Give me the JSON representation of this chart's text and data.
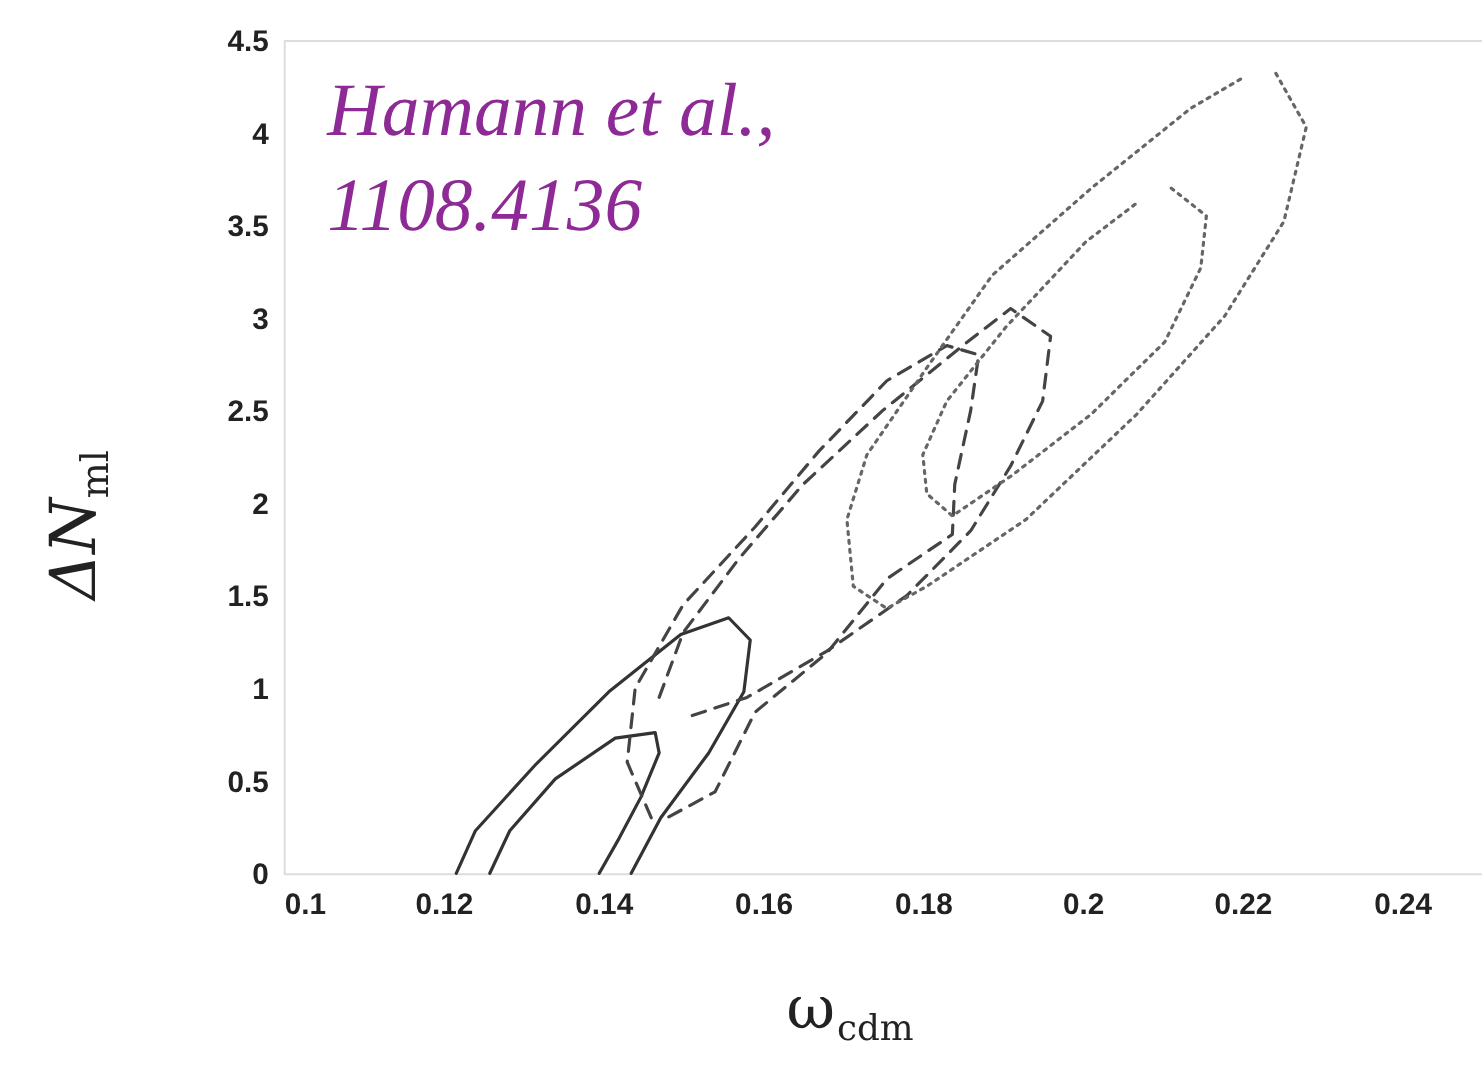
{
  "chart_data": {
    "type": "line",
    "xlabel": "ω$_{cdm}$",
    "ylabel": "ΔN$_{ml}$",
    "annotations": [
      "Hamann et al.,",
      "1108.4136"
    ],
    "xlim": [
      0.1,
      0.25
    ],
    "ylim": [
      0,
      4.5
    ],
    "xticks": [
      0.1,
      0.12,
      0.14,
      0.16,
      0.18,
      0.2,
      0.22,
      0.24
    ],
    "yticks": [
      0,
      0.5,
      1,
      1.5,
      2,
      2.5,
      3,
      3.5,
      4,
      4.5
    ],
    "grid": false,
    "marker": "none",
    "series": [
      {
        "color": "#333333",
        "line_style": "solid",
        "x": [
          0.1216,
          0.124,
          0.1316,
          0.1407,
          0.1497,
          0.1557,
          0.1584,
          0.1576,
          0.1532,
          0.1472,
          0.1435
        ],
        "values": [
          0,
          0.23,
          0.59,
          0.98,
          1.29,
          1.38,
          1.26,
          0.98,
          0.65,
          0.3,
          0
        ]
      },
      {
        "color": "#333333",
        "line_style": "solid",
        "x": [
          0.1258,
          0.1283,
          0.134,
          0.1415,
          0.1465,
          0.147,
          0.1447,
          0.142,
          0.1395
        ],
        "values": [
          0,
          0.23,
          0.51,
          0.73,
          0.76,
          0.65,
          0.41,
          0.19,
          0
        ]
      },
      {
        "color": "#444444",
        "line_style": "dashed",
        "x": [
          0.146,
          0.143,
          0.144,
          0.15,
          0.159,
          0.167,
          0.1755,
          0.183,
          0.187,
          0.186,
          0.184,
          0.1837,
          0.1755,
          0.168,
          0.159,
          0.154,
          0.148
        ],
        "values": [
          0.3,
          0.6,
          1.0,
          1.45,
          1.87,
          2.28,
          2.66,
          2.85,
          2.8,
          2.5,
          2.1,
          1.83,
          1.59,
          1.19,
          0.87,
          0.44,
          0.3
        ]
      },
      {
        "color": "#444444",
        "line_style": "dashed",
        "x": [
          0.147,
          0.15,
          0.157,
          0.165,
          0.175,
          0.185,
          0.191,
          0.196,
          0.195,
          0.191,
          0.186,
          0.178,
          0.168,
          0.158,
          0.151
        ],
        "values": [
          0.95,
          1.3,
          1.7,
          2.1,
          2.5,
          2.85,
          3.05,
          2.9,
          2.55,
          2.2,
          1.85,
          1.5,
          1.2,
          0.95,
          0.85
        ]
      },
      {
        "color": "#666666",
        "line_style": "dotted",
        "x": [
          0.2242,
          0.228,
          0.2252,
          0.2178,
          0.2068,
          0.1929,
          0.1805,
          0.1755,
          0.1713,
          0.1705,
          0.173,
          0.1805,
          0.1887,
          0.2011,
          0.2135,
          0.2202
        ],
        "values": [
          4.32,
          4.03,
          3.52,
          3.01,
          2.48,
          1.91,
          1.55,
          1.43,
          1.55,
          1.91,
          2.26,
          2.73,
          3.23,
          3.7,
          4.13,
          4.3
        ]
      },
      {
        "color": "#666666",
        "line_style": "dotted",
        "x": [
          0.2111,
          0.2155,
          0.2148,
          0.2103,
          0.2011,
          0.1912,
          0.1837,
          0.1805,
          0.18,
          0.183,
          0.1904,
          0.2004,
          0.2068
        ],
        "values": [
          3.7,
          3.55,
          3.27,
          2.87,
          2.48,
          2.15,
          1.93,
          2.05,
          2.26,
          2.55,
          2.95,
          3.41,
          3.62
        ]
      }
    ]
  }
}
